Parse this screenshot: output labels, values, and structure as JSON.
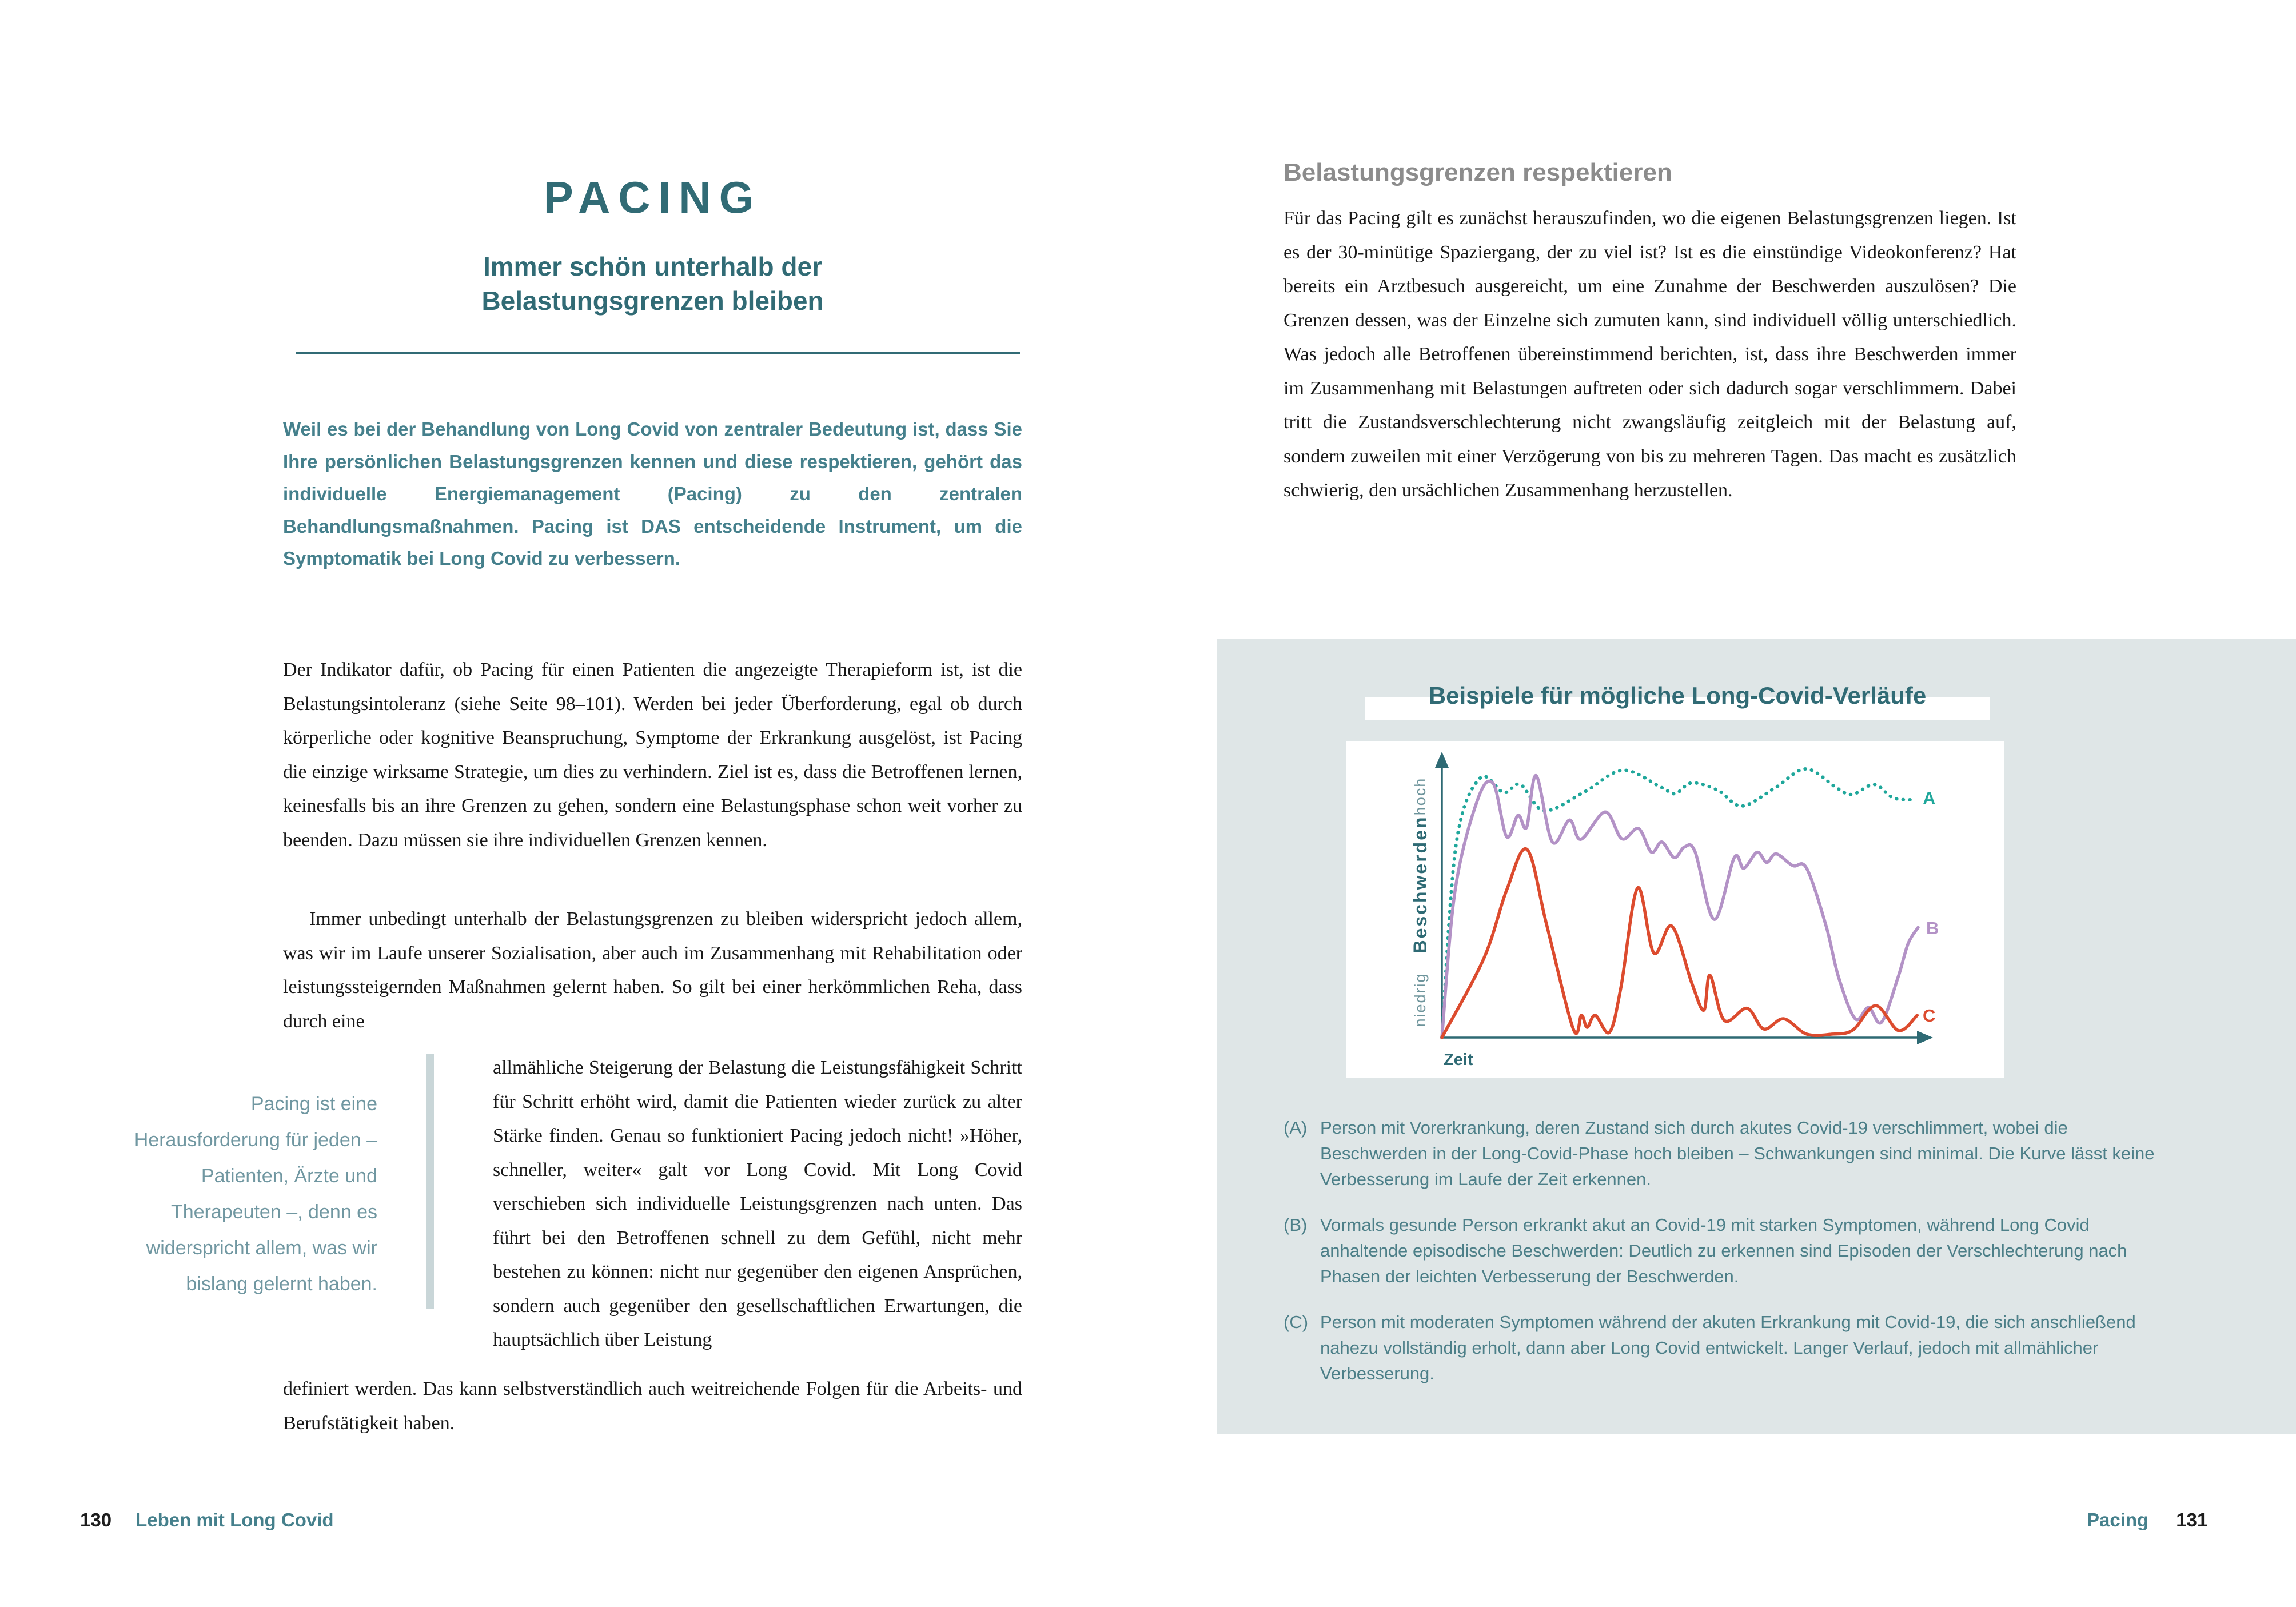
{
  "left_page": {
    "title": "PACING",
    "subtitle_line1": "Immer schön unterhalb der",
    "subtitle_line2": "Belastungsgrenzen bleiben",
    "intro": "Weil es bei der Behandlung von Long Covid von zentraler Bedeutung ist, dass Sie Ihre persönlichen Belastungsgrenzen kennen und diese respektieren, gehört das individuelle Energiemanagement (Pacing) zu den zentralen Behandlungsmaßnahmen. Pacing ist DAS entscheidende Instrument, um die Symptomatik bei Long Covid zu verbessern.",
    "para1": "Der Indikator dafür, ob Pacing für einen Patienten die angezeigte Therapieform ist, ist die Belastungsintoleranz (siehe Seite 98–101). Werden bei jeder Überforderung, egal ob durch körperliche oder kognitive Beanspruchung, Symptome der Erkrankung ausgelöst, ist Pacing die einzige wirksame Strategie, um dies zu verhindern. Ziel ist es, dass die Betroffenen lernen, keinesfalls bis an ihre Grenzen zu gehen, sondern eine Belastungsphase schon weit vorher zu beenden. Dazu müssen sie ihre individuellen Grenzen kennen.",
    "para2_start": "Immer unbedingt unterhalb der Belastungsgrenzen zu bleiben widerspricht jedoch allem, was wir im Laufe unserer Sozialisation, aber auch im Zusammenhang mit Rehabilitation oder leistungssteigernden Maßnahmen gelernt haben. So gilt bei einer herkömmlichen Reha, dass durch eine",
    "para2_wrap": "allmähliche Steigerung der Belastung die Leistungsfähigkeit Schritt für Schritt erhöht wird, damit die Patienten wieder zurück zu alter Stärke finden. Genau so funktioniert Pacing jedoch nicht! »Höher, schneller, weiter« galt vor Long Covid. Mit Long Covid verschieben sich individuelle Leistungsgrenzen nach unten. Das führt bei den Betroffenen schnell zu dem Gefühl, nicht mehr bestehen zu können: nicht nur gegenüber den eigenen Ansprüchen, sondern auch gegenüber den gesellschaftlichen Erwartungen, die hauptsächlich über Leistung",
    "para2_end": "definiert werden. Das kann selbstverständlich auch weitreichende Folgen für die Arbeits- und Berufstätigkeit haben.",
    "pull_quote": "Pacing ist eine Herausforderung für jeden – Patienten, Ärzte und Therapeuten –, denn es widerspricht allem, was wir bislang gelernt haben.",
    "footer": {
      "page_number": "130",
      "section": "Leben mit Long Covid"
    }
  },
  "right_page": {
    "heading": "Belastungsgrenzen respektieren",
    "body": "Für das Pacing gilt es zunächst herauszufinden, wo die eigenen Belastungsgrenzen liegen. Ist es der 30-minütige Spaziergang, der zu viel ist? Ist es die einstündige Videokonferenz? Hat bereits ein Arztbesuch ausgereicht, um eine Zunahme der Beschwerden auszulösen? Die Grenzen dessen, was der Einzelne sich zumuten kann, sind individuell völlig unterschiedlich. Was jedoch alle Betroffenen übereinstimmend berichten, ist, dass ihre Beschwerden immer im Zusammenhang mit Belastungen auftreten oder sich dadurch sogar verschlimmern. Dabei tritt die Zustandsverschlechterung nicht zwangsläufig zeitgleich mit der Belastung auf, sondern zuweilen mit einer Verzögerung von bis zu mehreren Tagen. Das macht es zusätzlich schwierig, den ursächlichen Zusammenhang herzustellen.",
    "footer": {
      "section": "Pacing",
      "page_number": "131"
    }
  },
  "infobox": {
    "title": "Beispiele für mögliche Long-Covid-Verläufe",
    "panel_color": "#dfe6e7",
    "captions": [
      {
        "label": "(A)",
        "text": "Person mit Vorerkrankung, deren Zustand sich durch akutes Covid-19 verschlimmert, wobei die Beschwerden in der Long-Covid-Phase hoch bleiben – Schwankungen sind minimal. Die Kurve lässt keine Verbesserung im Laufe der Zeit erkennen."
      },
      {
        "label": "(B)",
        "text": "Vormals gesunde Person erkrankt akut an Covid-19 mit starken Symptomen, während Long Covid anhaltende episodische Beschwerden: Deutlich zu erkennen sind Episoden der Verschlechterung nach Phasen der leichten Verbesserung der Beschwerden."
      },
      {
        "label": "(C)",
        "text": "Person mit moderaten Symptomen während der akuten Erkrankung mit Covid-19, die sich anschließend nahezu vollständig erholt, dann aber Long Covid entwickelt. Langer Verlauf, jedoch mit allmählicher Verbesserung."
      }
    ]
  },
  "chart_data": {
    "type": "line",
    "title": "Beispiele für mögliche Long-Covid-Verläufe",
    "xlabel": "Zeit",
    "ylabel": "Beschwerden",
    "y_axis_top_label": "hoch",
    "y_axis_bottom_label": "niedrig",
    "axis_color": "#2e6a74",
    "grid": false,
    "legend_position": "end-of-line labels",
    "x_range_note": "unlabeled time axis, curves start at onset of acute Covid-19",
    "series": [
      {
        "name": "A",
        "color": "#1fa79b",
        "style": "dotted",
        "points": [
          [
            0,
            0
          ],
          [
            0.03,
            0.72
          ],
          [
            0.08,
            0.965
          ],
          [
            0.13,
            0.912
          ],
          [
            0.165,
            0.942
          ],
          [
            0.215,
            0.845
          ],
          [
            0.3,
            0.915
          ],
          [
            0.38,
            0.995
          ],
          [
            0.46,
            0.932
          ],
          [
            0.49,
            0.908
          ],
          [
            0.525,
            0.948
          ],
          [
            0.58,
            0.92
          ],
          [
            0.63,
            0.862
          ],
          [
            0.7,
            0.93
          ],
          [
            0.765,
            1.0
          ],
          [
            0.83,
            0.928
          ],
          [
            0.862,
            0.905
          ],
          [
            0.908,
            0.942
          ],
          [
            0.948,
            0.892
          ],
          [
            0.995,
            0.885
          ]
        ]
      },
      {
        "name": "B",
        "color": "#b392c6",
        "style": "solid",
        "points": [
          [
            0,
            0
          ],
          [
            0.028,
            0.55
          ],
          [
            0.075,
            0.885
          ],
          [
            0.108,
            0.945
          ],
          [
            0.136,
            0.748
          ],
          [
            0.16,
            0.828
          ],
          [
            0.178,
            0.783
          ],
          [
            0.198,
            0.975
          ],
          [
            0.232,
            0.728
          ],
          [
            0.268,
            0.81
          ],
          [
            0.292,
            0.738
          ],
          [
            0.343,
            0.84
          ],
          [
            0.378,
            0.74
          ],
          [
            0.413,
            0.778
          ],
          [
            0.44,
            0.69
          ],
          [
            0.462,
            0.728
          ],
          [
            0.488,
            0.67
          ],
          [
            0.51,
            0.71
          ],
          [
            0.532,
            0.69
          ],
          [
            0.572,
            0.44
          ],
          [
            0.614,
            0.67
          ],
          [
            0.634,
            0.63
          ],
          [
            0.662,
            0.69
          ],
          [
            0.682,
            0.652
          ],
          [
            0.702,
            0.684
          ],
          [
            0.737,
            0.64
          ],
          [
            0.766,
            0.63
          ],
          [
            0.807,
            0.415
          ],
          [
            0.833,
            0.225
          ],
          [
            0.868,
            0.07
          ],
          [
            0.896,
            0.112
          ],
          [
            0.923,
            0.057
          ],
          [
            0.958,
            0.225
          ],
          [
            0.979,
            0.35
          ],
          [
            1.0,
            0.41
          ]
        ]
      },
      {
        "name": "C",
        "color": "#dc4b2e",
        "style": "solid",
        "points": [
          [
            0,
            0
          ],
          [
            0.088,
            0.294
          ],
          [
            0.136,
            0.549
          ],
          [
            0.179,
            0.7
          ],
          [
            0.22,
            0.42
          ],
          [
            0.276,
            0.032
          ],
          [
            0.293,
            0.083
          ],
          [
            0.305,
            0.038
          ],
          [
            0.322,
            0.083
          ],
          [
            0.352,
            0.02
          ],
          [
            0.376,
            0.187
          ],
          [
            0.411,
            0.557
          ],
          [
            0.445,
            0.315
          ],
          [
            0.483,
            0.415
          ],
          [
            0.525,
            0.202
          ],
          [
            0.55,
            0.102
          ],
          [
            0.563,
            0.232
          ],
          [
            0.593,
            0.064
          ],
          [
            0.641,
            0.109
          ],
          [
            0.676,
            0.032
          ],
          [
            0.718,
            0.07
          ],
          [
            0.766,
            0.013
          ],
          [
            0.82,
            0.013
          ],
          [
            0.863,
            0.028
          ],
          [
            0.911,
            0.119
          ],
          [
            0.959,
            0.026
          ],
          [
            0.998,
            0.083
          ]
        ]
      }
    ]
  }
}
